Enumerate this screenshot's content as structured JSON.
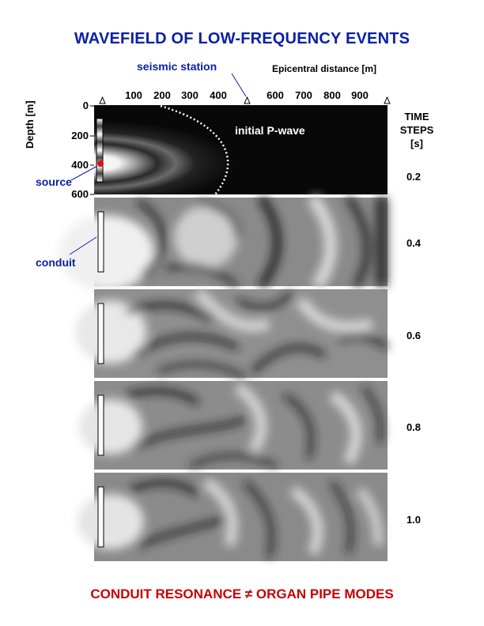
{
  "title": "WAVEFIELD OF LOW-FREQUENCY EVENTS",
  "footer": "CONDUIT RESONANCE ≠ ORGAN PIPE MODES",
  "labels": {
    "seismic_station": "seismic station",
    "epicentral_distance": "Epicentral distance [m]",
    "depth_axis": "Depth [m]",
    "initial_p_wave": "initial P-wave",
    "source": "source",
    "conduit": "conduit",
    "time_steps_line1": "TIME",
    "time_steps_line2": "STEPS",
    "time_steps_line3": "[s]"
  },
  "x_ticks": [
    "100",
    "200",
    "300",
    "400",
    "600",
    "700",
    "800",
    "900"
  ],
  "x_tick_values": [
    100,
    200,
    300,
    400,
    600,
    700,
    800,
    900
  ],
  "station_positions_m": [
    0,
    500,
    1000
  ],
  "depth_ticks": [
    "0",
    "200",
    "400",
    "600"
  ],
  "depth_tick_values": [
    0,
    200,
    400,
    600
  ],
  "time_steps": [
    "0.2",
    "0.4",
    "0.6",
    "0.8",
    "1.0"
  ],
  "colors": {
    "title": "#0a1fa8",
    "footer": "#c80000",
    "source_marker": "#e01010",
    "annotation": "#0a1fa8"
  }
}
